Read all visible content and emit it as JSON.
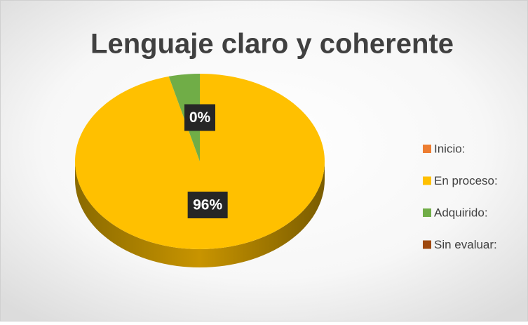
{
  "chart_data": {
    "type": "pie",
    "title": "Lenguaje claro y coherente",
    "categories": [
      "Inicio:",
      "En proceso:",
      "Adquirido:",
      "Sin evaluar:"
    ],
    "values": [
      0,
      96,
      4,
      0
    ],
    "value_labels": [
      "0%",
      "96%",
      null,
      null
    ],
    "colors": [
      "#ed7d31",
      "#ffc000",
      "#70ad47",
      "#9e480e"
    ],
    "legend": "right"
  }
}
